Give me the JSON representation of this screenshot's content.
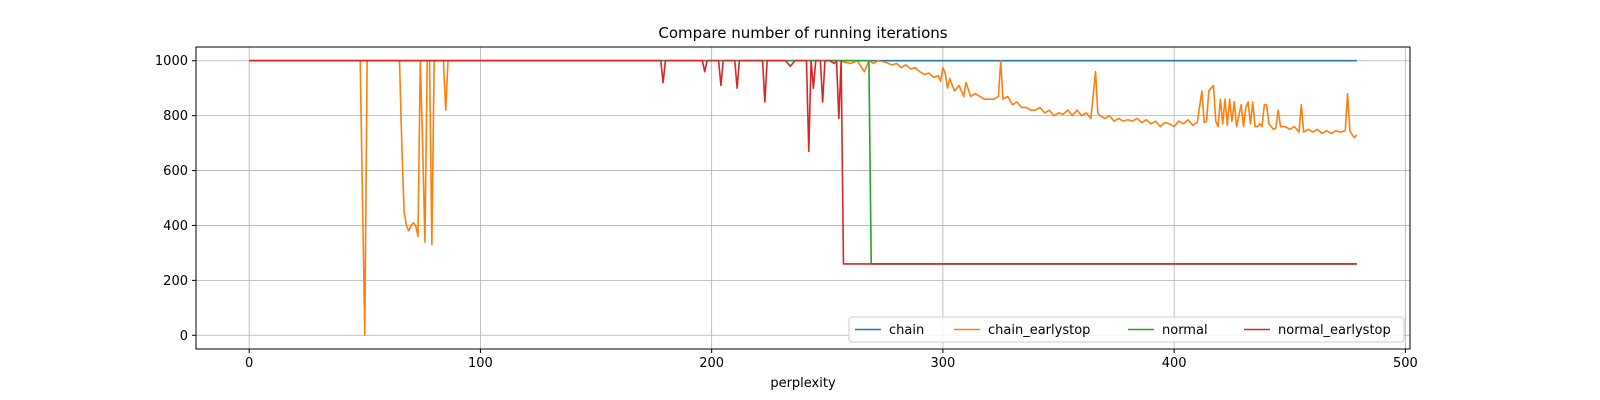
{
  "chart_data": {
    "type": "line",
    "title": "Compare number of running iterations",
    "xlabel": "perplexity",
    "ylabel": "",
    "xlim": [
      -23,
      502
    ],
    "ylim": [
      -50,
      1050
    ],
    "xticks": [
      0,
      100,
      200,
      300,
      400,
      500
    ],
    "yticks": [
      0,
      200,
      400,
      600,
      800,
      1000
    ],
    "grid": true,
    "legend": {
      "placement": "lower-right",
      "columns": 4
    },
    "series": [
      {
        "name": "chain",
        "color": "#1f77b4",
        "points": [
          [
            0,
            1000
          ],
          [
            479,
            1000
          ]
        ]
      },
      {
        "name": "chain_earlystop",
        "color": "#ff7f0e",
        "points": [
          [
            0,
            1000
          ],
          [
            48,
            1000
          ],
          [
            49,
            500
          ],
          [
            50,
            0
          ],
          [
            51,
            1000
          ],
          [
            52,
            1000
          ],
          [
            65,
            1000
          ],
          [
            66,
            700
          ],
          [
            67,
            450
          ],
          [
            68,
            400
          ],
          [
            69,
            380
          ],
          [
            70,
            400
          ],
          [
            71,
            410
          ],
          [
            72,
            400
          ],
          [
            73,
            360
          ],
          [
            74,
            1000
          ],
          [
            75,
            700
          ],
          [
            76,
            340
          ],
          [
            77,
            1000
          ],
          [
            78,
            1000
          ],
          [
            79,
            330
          ],
          [
            80,
            1000
          ],
          [
            84,
            1000
          ],
          [
            85,
            820
          ],
          [
            86,
            1000
          ],
          [
            240,
            1000
          ],
          [
            250,
            1000
          ],
          [
            255,
            1000
          ],
          [
            260,
            990
          ],
          [
            263,
            1000
          ],
          [
            266,
            960
          ],
          [
            268,
            1000
          ],
          [
            270,
            990
          ],
          [
            272,
            1000
          ],
          [
            275,
            995
          ],
          [
            278,
            985
          ],
          [
            280,
            990
          ],
          [
            282,
            975
          ],
          [
            284,
            985
          ],
          [
            286,
            970
          ],
          [
            288,
            975
          ],
          [
            290,
            960
          ],
          [
            292,
            950
          ],
          [
            294,
            955
          ],
          [
            296,
            940
          ],
          [
            298,
            945
          ],
          [
            299,
            925
          ],
          [
            300,
            975
          ],
          [
            301,
            955
          ],
          [
            302,
            900
          ],
          [
            303,
            935
          ],
          [
            305,
            890
          ],
          [
            307,
            910
          ],
          [
            309,
            870
          ],
          [
            310,
            920
          ],
          [
            312,
            870
          ],
          [
            314,
            880
          ],
          [
            316,
            870
          ],
          [
            318,
            860
          ],
          [
            320,
            860
          ],
          [
            322,
            860
          ],
          [
            324,
            870
          ],
          [
            325,
            1000
          ],
          [
            326,
            860
          ],
          [
            328,
            870
          ],
          [
            330,
            840
          ],
          [
            332,
            850
          ],
          [
            334,
            830
          ],
          [
            336,
            830
          ],
          [
            338,
            820
          ],
          [
            340,
            820
          ],
          [
            342,
            830
          ],
          [
            344,
            810
          ],
          [
            346,
            820
          ],
          [
            348,
            800
          ],
          [
            350,
            810
          ],
          [
            352,
            805
          ],
          [
            354,
            820
          ],
          [
            356,
            800
          ],
          [
            358,
            820
          ],
          [
            360,
            800
          ],
          [
            362,
            810
          ],
          [
            364,
            790
          ],
          [
            366,
            960
          ],
          [
            367,
            810
          ],
          [
            368,
            800
          ],
          [
            370,
            790
          ],
          [
            372,
            800
          ],
          [
            374,
            780
          ],
          [
            376,
            790
          ],
          [
            378,
            780
          ],
          [
            380,
            785
          ],
          [
            382,
            780
          ],
          [
            384,
            790
          ],
          [
            386,
            775
          ],
          [
            388,
            785
          ],
          [
            390,
            770
          ],
          [
            392,
            780
          ],
          [
            394,
            760
          ],
          [
            396,
            775
          ],
          [
            398,
            770
          ],
          [
            400,
            760
          ],
          [
            402,
            780
          ],
          [
            404,
            770
          ],
          [
            406,
            785
          ],
          [
            408,
            765
          ],
          [
            410,
            775
          ],
          [
            412,
            890
          ],
          [
            413,
            775
          ],
          [
            414,
            780
          ],
          [
            415,
            890
          ],
          [
            416,
            900
          ],
          [
            417,
            910
          ],
          [
            418,
            780
          ],
          [
            419,
            760
          ],
          [
            420,
            860
          ],
          [
            421,
            770
          ],
          [
            422,
            860
          ],
          [
            423,
            765
          ],
          [
            424,
            860
          ],
          [
            425,
            780
          ],
          [
            426,
            850
          ],
          [
            427,
            760
          ],
          [
            428,
            800
          ],
          [
            429,
            840
          ],
          [
            430,
            760
          ],
          [
            431,
            830
          ],
          [
            432,
            850
          ],
          [
            433,
            770
          ],
          [
            434,
            850
          ],
          [
            435,
            760
          ],
          [
            436,
            760
          ],
          [
            437,
            770
          ],
          [
            438,
            760
          ],
          [
            439,
            840
          ],
          [
            440,
            840
          ],
          [
            441,
            770
          ],
          [
            442,
            760
          ],
          [
            443,
            750
          ],
          [
            444,
            755
          ],
          [
            445,
            820
          ],
          [
            446,
            760
          ],
          [
            448,
            760
          ],
          [
            450,
            750
          ],
          [
            452,
            760
          ],
          [
            454,
            740
          ],
          [
            455,
            840
          ],
          [
            456,
            740
          ],
          [
            458,
            750
          ],
          [
            460,
            740
          ],
          [
            462,
            750
          ],
          [
            464,
            735
          ],
          [
            466,
            745
          ],
          [
            468,
            735
          ],
          [
            470,
            745
          ],
          [
            472,
            740
          ],
          [
            474,
            745
          ],
          [
            475,
            880
          ],
          [
            476,
            745
          ],
          [
            477,
            730
          ],
          [
            478,
            720
          ],
          [
            479,
            730
          ]
        ]
      },
      {
        "name": "normal",
        "color": "#2ca02c",
        "points": [
          [
            0,
            1000
          ],
          [
            268,
            1000
          ],
          [
            269,
            260
          ],
          [
            479,
            260
          ]
        ]
      },
      {
        "name": "normal_earlystop",
        "color": "#d62728",
        "points": [
          [
            0,
            1000
          ],
          [
            178,
            1000
          ],
          [
            179,
            920
          ],
          [
            180,
            1000
          ],
          [
            196,
            1000
          ],
          [
            197,
            960
          ],
          [
            198,
            1000
          ],
          [
            203,
            1000
          ],
          [
            204,
            910
          ],
          [
            205,
            1000
          ],
          [
            210,
            1000
          ],
          [
            211,
            900
          ],
          [
            212,
            1000
          ],
          [
            222,
            1000
          ],
          [
            223,
            850
          ],
          [
            224,
            1000
          ],
          [
            230,
            1000
          ],
          [
            232,
            1000
          ],
          [
            234,
            980
          ],
          [
            236,
            1000
          ],
          [
            241,
            1000
          ],
          [
            242,
            670
          ],
          [
            243,
            1000
          ],
          [
            244,
            900
          ],
          [
            245,
            1000
          ],
          [
            246,
            1000
          ],
          [
            247,
            1000
          ],
          [
            248,
            850
          ],
          [
            249,
            1000
          ],
          [
            251,
            1000
          ],
          [
            253,
            990
          ],
          [
            254,
            1000
          ],
          [
            255,
            790
          ],
          [
            256,
            1000
          ],
          [
            257,
            260
          ],
          [
            479,
            260
          ]
        ]
      }
    ]
  }
}
